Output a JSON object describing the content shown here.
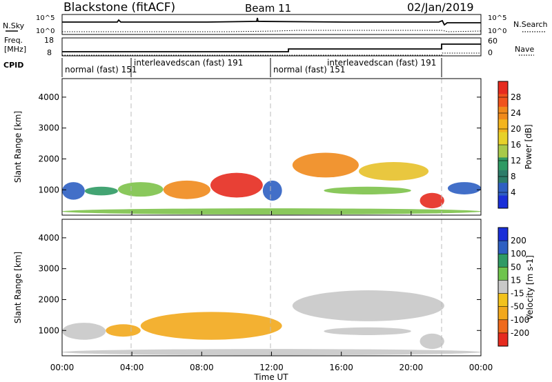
{
  "header": {
    "station": "Blackstone (fitACF)",
    "beam": "Beam 11",
    "date": "02/Jan/2019"
  },
  "noise_panel": {
    "left_label": "N.Sky",
    "right_label": "N.Search",
    "ticks": [
      "10^5",
      "10^0"
    ]
  },
  "freq_panel": {
    "left_label_1": "Freq.",
    "left_label_2": "[MHz]",
    "left_ticks": [
      "18",
      "8"
    ],
    "right_label": "Nave",
    "right_ticks": [
      "60",
      "0"
    ]
  },
  "cpid": {
    "label": "CPID",
    "segments": [
      {
        "text": "normal (fast) 151",
        "start_hour": 0,
        "end_hour": 4
      },
      {
        "text": "interleavedscan (fast) 191",
        "start_hour": 4,
        "end_hour": 12
      },
      {
        "text": "normal (fast) 151",
        "start_hour": 12,
        "end_hour": 16
      },
      {
        "text": "interleavedscan (fast) 191",
        "start_hour": 16,
        "end_hour": 22
      }
    ]
  },
  "power_colorbar": {
    "label": "Power [dB]",
    "ticks": [
      "28",
      "24",
      "20",
      "16",
      "12",
      "8",
      "4"
    ]
  },
  "velocity_colorbar": {
    "label": "Velocity [m s-1]",
    "ticks": [
      "200",
      "100",
      "50",
      "15",
      "-15",
      "-50",
      "-100",
      "-200"
    ]
  },
  "chart_data": [
    {
      "type": "heatmap",
      "name": "power",
      "ylabel": "Slant Range [km]",
      "xlabel": "Time UT",
      "x_range_hours": [
        0,
        24
      ],
      "y_range_km": [
        180,
        4600
      ],
      "y_ticks": [
        "1000",
        "2000",
        "3000",
        "4000"
      ],
      "x_ticks": [
        "00:00",
        "04:00",
        "08:00",
        "12:00",
        "16:00",
        "20:00",
        "00:00"
      ],
      "regions": [
        {
          "t0": 0.0,
          "t1": 1.3,
          "r0": 680,
          "r1": 1250,
          "band": 8
        },
        {
          "t0": 1.3,
          "t1": 3.2,
          "r0": 820,
          "r1": 1100,
          "band": 12
        },
        {
          "t0": 3.2,
          "t1": 5.8,
          "r0": 780,
          "r1": 1250,
          "band": 16
        },
        {
          "t0": 5.8,
          "t1": 8.5,
          "r0": 700,
          "r1": 1300,
          "band": 24
        },
        {
          "t0": 8.5,
          "t1": 11.5,
          "r0": 750,
          "r1": 1550,
          "band": 28
        },
        {
          "t0": 11.5,
          "t1": 12.6,
          "r0": 650,
          "r1": 1300,
          "band": 8
        },
        {
          "t0": 13.2,
          "t1": 17.0,
          "r0": 1400,
          "r1": 2200,
          "band": 24
        },
        {
          "t0": 17.0,
          "t1": 21.0,
          "r0": 1300,
          "r1": 1900,
          "band": 20
        },
        {
          "t0": 15.0,
          "t1": 20.0,
          "r0": 850,
          "r1": 1100,
          "band": 16
        },
        {
          "t0": 20.5,
          "t1": 21.9,
          "r0": 400,
          "r1": 900,
          "band": 28
        },
        {
          "t0": 22.1,
          "t1": 24.0,
          "r0": 850,
          "r1": 1250,
          "band": 8
        },
        {
          "t0": 0.0,
          "t1": 24.0,
          "r0": 200,
          "r1": 400,
          "band": 16
        }
      ]
    },
    {
      "type": "heatmap",
      "name": "velocity",
      "ylabel": "Slant Range [km]",
      "xlabel": "Time UT",
      "x_range_hours": [
        0,
        24
      ],
      "y_range_km": [
        180,
        4600
      ],
      "y_ticks": [
        "1000",
        "2000",
        "3000",
        "4000"
      ],
      "x_ticks": [
        "00:00",
        "04:00",
        "08:00",
        "12:00",
        "16:00",
        "20:00",
        "00:00"
      ],
      "regions": [
        {
          "t0": 0.0,
          "t1": 2.5,
          "r0": 700,
          "r1": 1250,
          "band": -15
        },
        {
          "t0": 2.5,
          "t1": 4.5,
          "r0": 800,
          "r1": 1200,
          "band": -50
        },
        {
          "t0": 4.5,
          "t1": 12.6,
          "r0": 700,
          "r1": 1600,
          "band": -50
        },
        {
          "t0": 13.2,
          "t1": 21.9,
          "r0": 1300,
          "r1": 2300,
          "band": 0
        },
        {
          "t0": 15.0,
          "t1": 20.0,
          "r0": 850,
          "r1": 1100,
          "band": 0
        },
        {
          "t0": 20.5,
          "t1": 21.9,
          "r0": 400,
          "r1": 900,
          "band": -15
        },
        {
          "t0": 0.0,
          "t1": 24.0,
          "r0": 200,
          "r1": 400,
          "band": 15
        }
      ]
    }
  ]
}
